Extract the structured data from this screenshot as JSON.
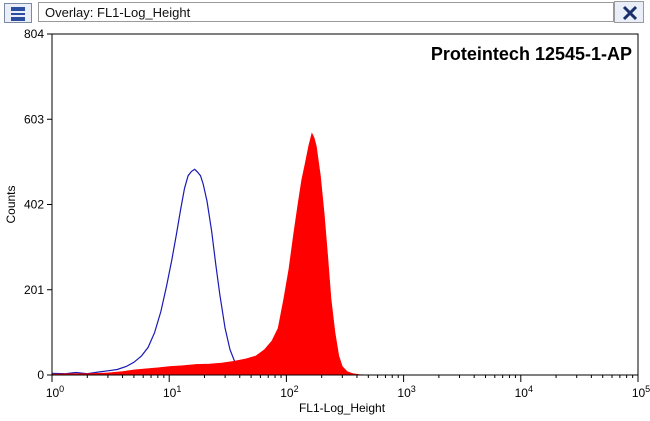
{
  "window": {
    "title": "Overlay: FL1-Log_Height",
    "icon": "histogram-window-icon",
    "close_icon": "close-icon"
  },
  "chart_data": {
    "type": "area",
    "title": "Proteintech 12545-1-AP",
    "xlabel": "FL1-Log_Height",
    "ylabel": "Counts",
    "xscale": "log",
    "xlim": [
      1,
      100000
    ],
    "ylim": [
      0,
      804
    ],
    "x_ticks": [
      1,
      10,
      100,
      1000,
      10000,
      100000
    ],
    "x_tick_labels": [
      {
        "base": "10",
        "exp": "0"
      },
      {
        "base": "10",
        "exp": "1"
      },
      {
        "base": "10",
        "exp": "2"
      },
      {
        "base": "10",
        "exp": "3"
      },
      {
        "base": "10",
        "exp": "4"
      },
      {
        "base": "10",
        "exp": "5"
      }
    ],
    "y_ticks": [
      0,
      201,
      402,
      603,
      804
    ],
    "y_tick_labels": [
      "0",
      "201",
      "402",
      "603",
      "804"
    ],
    "grid": false,
    "series": [
      {
        "style": "outline",
        "color": "#1a1ab4",
        "points": [
          [
            1.0,
            4
          ],
          [
            1.3,
            3
          ],
          [
            1.6,
            6
          ],
          [
            2.0,
            3
          ],
          [
            2.5,
            7
          ],
          [
            3.0,
            10
          ],
          [
            3.6,
            13
          ],
          [
            4.3,
            20
          ],
          [
            5.0,
            30
          ],
          [
            5.8,
            45
          ],
          [
            6.6,
            65
          ],
          [
            7.5,
            100
          ],
          [
            8.5,
            150
          ],
          [
            9.5,
            210
          ],
          [
            10.5,
            270
          ],
          [
            11.5,
            330
          ],
          [
            12.5,
            390
          ],
          [
            13.5,
            440
          ],
          [
            14.5,
            470
          ],
          [
            15.5,
            480
          ],
          [
            16.5,
            485
          ],
          [
            17.5,
            478
          ],
          [
            18.5,
            470
          ],
          [
            19.5,
            450
          ],
          [
            21.0,
            410
          ],
          [
            23.0,
            340
          ],
          [
            25.0,
            260
          ],
          [
            27.0,
            190
          ],
          [
            30.0,
            110
          ],
          [
            33.0,
            60
          ],
          [
            37.0,
            25
          ],
          [
            42.0,
            10
          ],
          [
            50.0,
            5
          ],
          [
            60.0,
            3
          ],
          [
            80.0,
            1
          ],
          [
            100.0,
            0
          ]
        ]
      },
      {
        "style": "filled",
        "color": "#ff0000",
        "points": [
          [
            1.0,
            2
          ],
          [
            1.5,
            3
          ],
          [
            2.0,
            3
          ],
          [
            2.5,
            4
          ],
          [
            3.0,
            5
          ],
          [
            4.0,
            8
          ],
          [
            5.0,
            12
          ],
          [
            6.0,
            14
          ],
          [
            8.0,
            17
          ],
          [
            10.0,
            20
          ],
          [
            13.0,
            22
          ],
          [
            17.0,
            25
          ],
          [
            22.0,
            26
          ],
          [
            28.0,
            28
          ],
          [
            35.0,
            32
          ],
          [
            45.0,
            38
          ],
          [
            55.0,
            45
          ],
          [
            65.0,
            60
          ],
          [
            75.0,
            80
          ],
          [
            85.0,
            110
          ],
          [
            95.0,
            180
          ],
          [
            105.0,
            250
          ],
          [
            115.0,
            330
          ],
          [
            125.0,
            400
          ],
          [
            135.0,
            460
          ],
          [
            145.0,
            500
          ],
          [
            155.0,
            540
          ],
          [
            165.0,
            570
          ],
          [
            172.0,
            560
          ],
          [
            180.0,
            540
          ],
          [
            195.0,
            470
          ],
          [
            210.0,
            380
          ],
          [
            225.0,
            280
          ],
          [
            240.0,
            180
          ],
          [
            260.0,
            100
          ],
          [
            280.0,
            45
          ],
          [
            300.0,
            20
          ],
          [
            330.0,
            8
          ],
          [
            370.0,
            3
          ],
          [
            420.0,
            1
          ],
          [
            500.0,
            0
          ]
        ]
      }
    ]
  }
}
